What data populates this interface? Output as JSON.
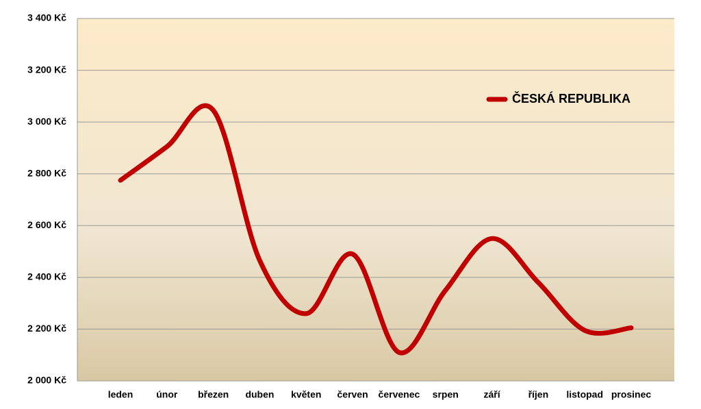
{
  "chart_data": {
    "type": "line",
    "categories": [
      "leden",
      "únor",
      "březen",
      "duben",
      "květen",
      "červen",
      "červenec",
      "srpen",
      "září",
      "říjen",
      "listopad",
      "prosinec"
    ],
    "series": [
      {
        "name": "ČESKÁ REPUBLIKA",
        "color": "#c00000",
        "values": [
          2775,
          2905,
          3045,
          2465,
          2260,
          2490,
          2110,
          2350,
          2550,
          2380,
          2195,
          2205
        ]
      }
    ],
    "ylim": [
      2000,
      3400
    ],
    "yticks": [
      {
        "value": 2000,
        "label": "2 000 Kč"
      },
      {
        "value": 2200,
        "label": "2 200 Kč"
      },
      {
        "value": 2400,
        "label": "2 400 Kč"
      },
      {
        "value": 2600,
        "label": "2 600 Kč"
      },
      {
        "value": 2800,
        "label": "2 800 Kč"
      },
      {
        "value": 3000,
        "label": "3 000 Kč"
      },
      {
        "value": 3200,
        "label": "3 200 Kč"
      },
      {
        "value": 3400,
        "label": "3 400 Kč"
      }
    ],
    "grid": true,
    "legend": "top-right"
  }
}
